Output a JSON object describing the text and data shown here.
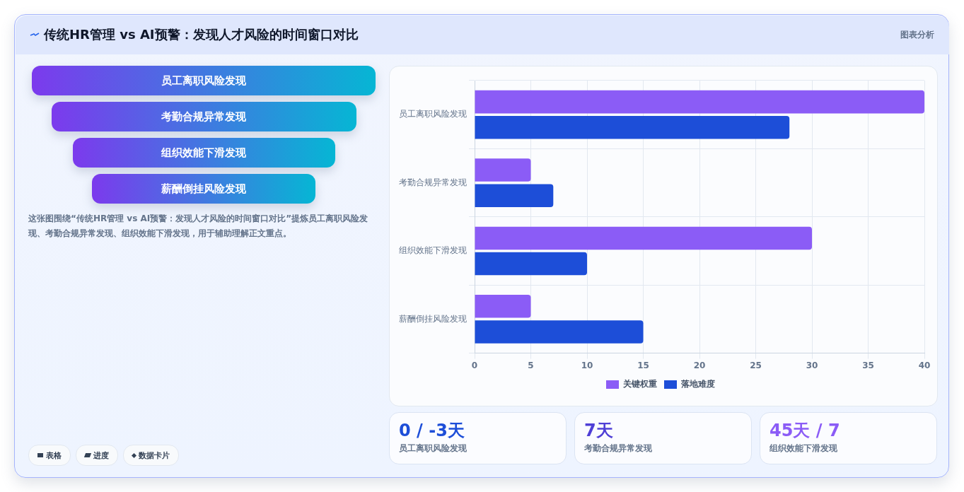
{
  "chart_data": [
    {
      "type": "other",
      "title": "传统HR管理 vs AI预警：发现人才风险的时间窗口对比",
      "subtitle": "图表分析",
      "categories": [
        "员工离职风险发现",
        "考勤合规异常发现",
        "组织效能下滑发现",
        "薪酬倒挂风险发现"
      ],
      "annotations": [
        "这张图围绕“传统HR管理 vs AI预警：发现人才风险的时间窗口对比”提炼员工离职风险发现、考勤合规异常发现、组织效能下滑发现，用于辅助理解正文重点。",
        "表格",
        "进度",
        "数据卡片"
      ]
    },
    {
      "type": "bar",
      "orientation": "horizontal",
      "categories": [
        "员工离职风险发现",
        "考勤合规异常发现",
        "组织效能下滑发现",
        "薪酬倒挂风险发现"
      ],
      "series": [
        {
          "name": "关键权重",
          "color": "#8b5cf6",
          "values": [
            40,
            5,
            30,
            5
          ]
        },
        {
          "name": "落地难度",
          "color": "#1d4ed8",
          "values": [
            28,
            7,
            10,
            15
          ]
        }
      ],
      "xlim": [
        0,
        40
      ],
      "xticks": [
        0,
        5,
        10,
        15,
        20,
        25,
        30,
        35,
        40
      ],
      "grid": true,
      "legend": "bottom"
    },
    {
      "type": "other",
      "categories": [
        "员工离职风险发现",
        "考勤合规异常发现",
        "组织效能下滑发现"
      ],
      "value_labels": [
        "0 / -3天",
        "7天",
        "45天 / 7"
      ]
    }
  ]
}
